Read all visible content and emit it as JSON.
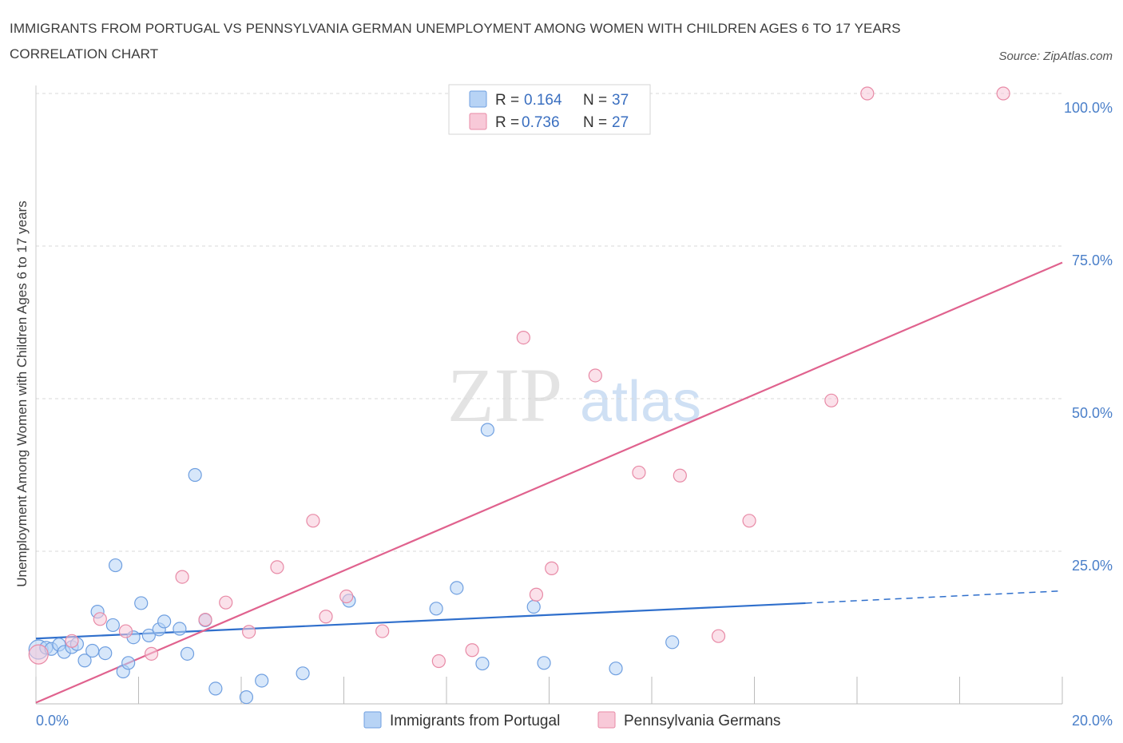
{
  "title": "IMMIGRANTS FROM PORTUGAL VS PENNSYLVANIA GERMAN UNEMPLOYMENT AMONG WOMEN WITH CHILDREN AGES 6 TO 17 YEARS CORRELATION CHART",
  "source": "Source: ZipAtlas.com",
  "watermark": {
    "zip": "ZIP",
    "atlas": "atlas"
  },
  "colors": {
    "blue": "#6f9fe0",
    "blue_fill": "#b7d3f5",
    "blue_line": "#2f6fcc",
    "pink": "#e88aa6",
    "pink_fill": "#f8c9d8",
    "pink_line": "#e0628e",
    "tick_text": "#4a7fc9",
    "grid": "#d9d9d9"
  },
  "legend": {
    "rows": [
      {
        "r_label": "R =",
        "r_value": "0.164",
        "n_label": "N =",
        "n_value": "37",
        "color": "blue"
      },
      {
        "r_label": "R =",
        "r_value": "0.736",
        "n_label": "N =",
        "n_value": "27",
        "color": "pink"
      }
    ],
    "placement": "top-center"
  },
  "chart_data": {
    "type": "scatter",
    "ylabel": "Unemployment Among Women with Children Ages 6 to 17 years",
    "xlabel": "",
    "xlim": [
      0,
      20
    ],
    "ylim": [
      0,
      100
    ],
    "x_tick_labels": [
      {
        "value": 0,
        "label": "0.0%"
      },
      {
        "value": 20,
        "label": "20.0%"
      }
    ],
    "y_tick_labels": [
      {
        "value": 25,
        "label": "25.0%"
      },
      {
        "value": 50,
        "label": "50.0%"
      },
      {
        "value": 75,
        "label": "75.0%"
      },
      {
        "value": 100,
        "label": "100.0%"
      }
    ],
    "grid": true,
    "series": [
      {
        "name": "Immigrants from Portugal",
        "color": "blue",
        "points": [
          [
            0.05,
            8.9
          ],
          [
            0.2,
            9.2
          ],
          [
            0.3,
            9.0
          ],
          [
            0.45,
            9.7
          ],
          [
            0.55,
            8.5
          ],
          [
            0.7,
            9.3
          ],
          [
            0.8,
            9.8
          ],
          [
            0.95,
            7.1
          ],
          [
            1.1,
            8.7
          ],
          [
            1.2,
            15.1
          ],
          [
            1.35,
            8.3
          ],
          [
            1.5,
            12.9
          ],
          [
            1.55,
            22.7
          ],
          [
            1.7,
            5.3
          ],
          [
            1.8,
            6.7
          ],
          [
            1.9,
            10.9
          ],
          [
            2.05,
            16.5
          ],
          [
            2.2,
            11.2
          ],
          [
            2.4,
            12.2
          ],
          [
            2.5,
            13.5
          ],
          [
            2.8,
            12.3
          ],
          [
            2.95,
            8.2
          ],
          [
            3.1,
            37.5
          ],
          [
            3.3,
            13.7
          ],
          [
            3.5,
            2.5
          ],
          [
            4.1,
            1.1
          ],
          [
            4.4,
            3.8
          ],
          [
            5.2,
            5.0
          ],
          [
            6.1,
            16.9
          ],
          [
            7.8,
            15.6
          ],
          [
            8.2,
            19.0
          ],
          [
            8.8,
            44.9
          ],
          [
            8.7,
            6.6
          ],
          [
            9.7,
            15.9
          ],
          [
            9.9,
            6.7
          ],
          [
            11.3,
            5.8
          ],
          [
            12.4,
            10.1
          ]
        ],
        "trend": {
          "x": [
            0,
            15
          ],
          "y": [
            10.7,
            16.5
          ],
          "dashed_extension_to_x": 20,
          "dashed_extension_y": 18.5
        }
      },
      {
        "name": "Pennsylvania Germans",
        "color": "pink",
        "points": [
          [
            0.05,
            8.1
          ],
          [
            0.7,
            10.3
          ],
          [
            1.25,
            13.9
          ],
          [
            1.75,
            11.9
          ],
          [
            2.25,
            8.2
          ],
          [
            2.85,
            20.8
          ],
          [
            3.3,
            13.8
          ],
          [
            3.7,
            16.6
          ],
          [
            4.15,
            11.8
          ],
          [
            4.7,
            22.4
          ],
          [
            5.4,
            30.0
          ],
          [
            5.65,
            14.3
          ],
          [
            6.05,
            17.6
          ],
          [
            6.75,
            11.9
          ],
          [
            7.85,
            7.0
          ],
          [
            8.5,
            8.8
          ],
          [
            9.5,
            60.0
          ],
          [
            9.75,
            17.9
          ],
          [
            10.05,
            22.2
          ],
          [
            10.9,
            53.8
          ],
          [
            11.75,
            37.9
          ],
          [
            12.55,
            37.4
          ],
          [
            13.3,
            11.1
          ],
          [
            13.9,
            30.0
          ],
          [
            15.5,
            49.7
          ],
          [
            16.2,
            100.0
          ],
          [
            18.85,
            100.0
          ]
        ],
        "trend": {
          "x": [
            0,
            20
          ],
          "y": [
            0.2,
            72.3
          ]
        }
      }
    ]
  },
  "bottom_legend": [
    {
      "label": "Immigrants from Portugal",
      "color": "blue"
    },
    {
      "label": "Pennsylvania Germans",
      "color": "pink"
    }
  ]
}
